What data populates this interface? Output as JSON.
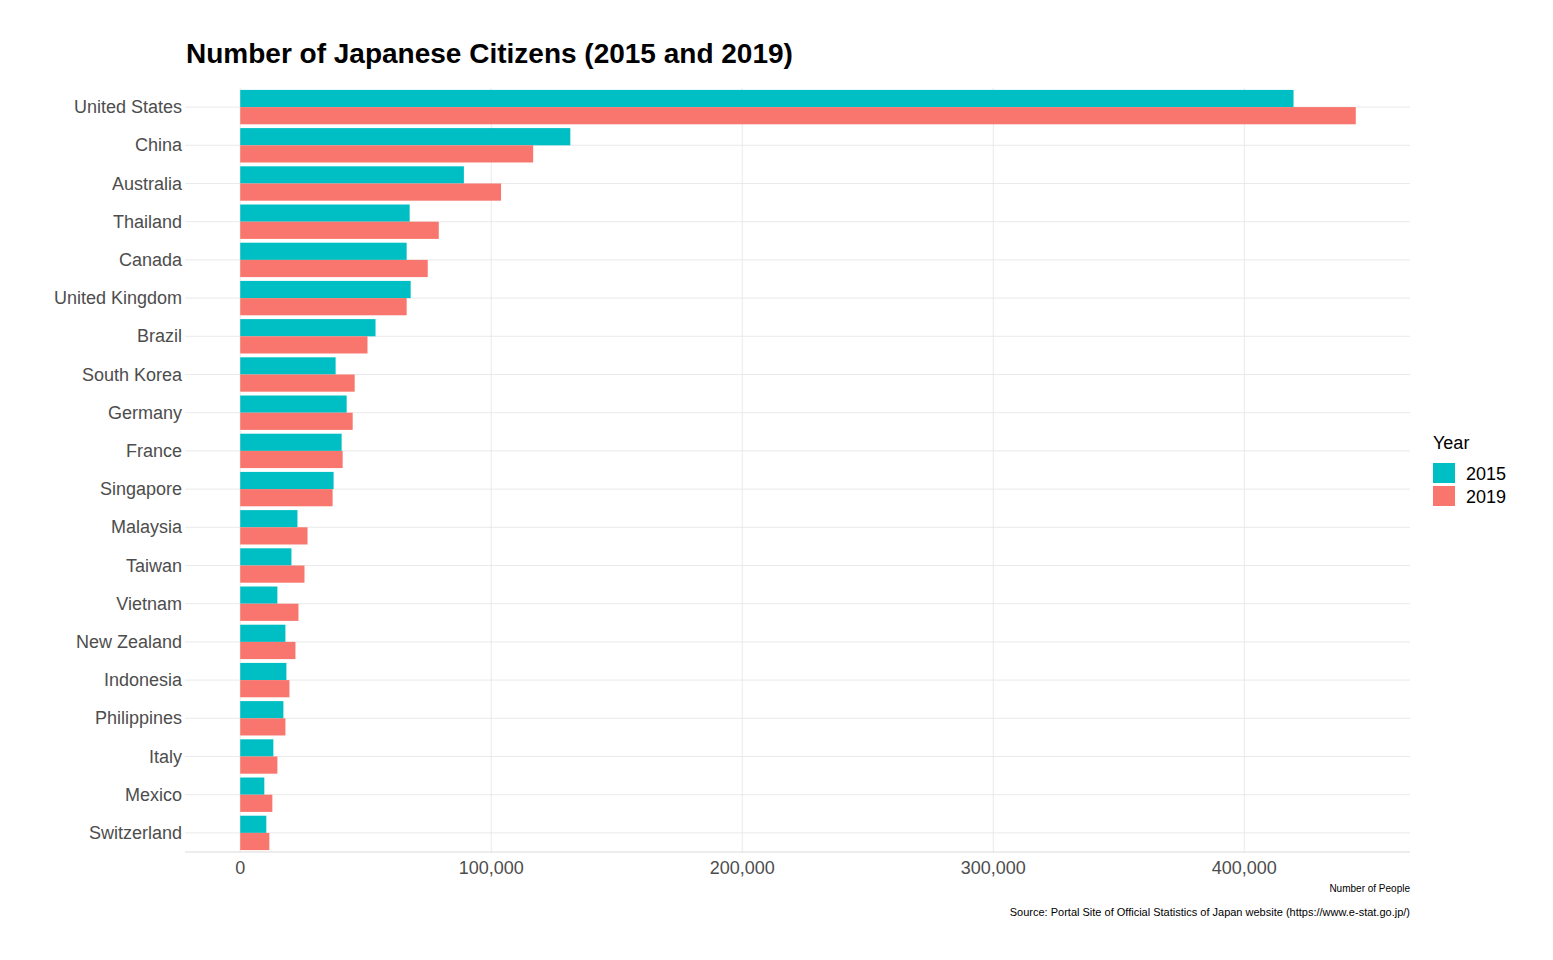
{
  "chart_data": {
    "type": "bar",
    "orientation": "horizontal",
    "title": "Number of Japanese Citizens (2015 and 2019)",
    "xlabel": "Number of People",
    "caption": "Source: Portal Site of Official Statistics of Japan website (https://www.e-stat.go.jp/)",
    "legend_title": "Year",
    "legend": "right",
    "grid": true,
    "categories": [
      "United States",
      "China",
      "Australia",
      "Thailand",
      "Canada",
      "United Kingdom",
      "Brazil",
      "South Korea",
      "Germany",
      "France",
      "Singapore",
      "Malaysia",
      "Taiwan",
      "Vietnam",
      "New Zealand",
      "Indonesia",
      "Philippines",
      "Italy",
      "Mexico",
      "Switzerland"
    ],
    "series": [
      {
        "name": "2015",
        "color": "#00BFC4",
        "values": [
          419600,
          131500,
          89100,
          67500,
          66300,
          67900,
          53900,
          38000,
          42400,
          40400,
          37200,
          22800,
          20400,
          14800,
          18000,
          18400,
          17200,
          13200,
          9600,
          10400
        ]
      },
      {
        "name": "2019",
        "color": "#F8766D",
        "values": [
          444400,
          116700,
          103900,
          79100,
          74700,
          66300,
          50700,
          45600,
          44800,
          40800,
          36800,
          26800,
          25600,
          23200,
          22000,
          19600,
          18000,
          14800,
          12800,
          11600
        ]
      }
    ],
    "xlim": [
      -22000,
      466000
    ],
    "xticks": [
      0,
      {
        "value": 100000,
        "label": "100,000"
      },
      {
        "value": 200000,
        "label": "200,000"
      },
      {
        "value": 300000,
        "label": "300,000"
      },
      {
        "value": 400000,
        "label": "400,000"
      }
    ]
  }
}
